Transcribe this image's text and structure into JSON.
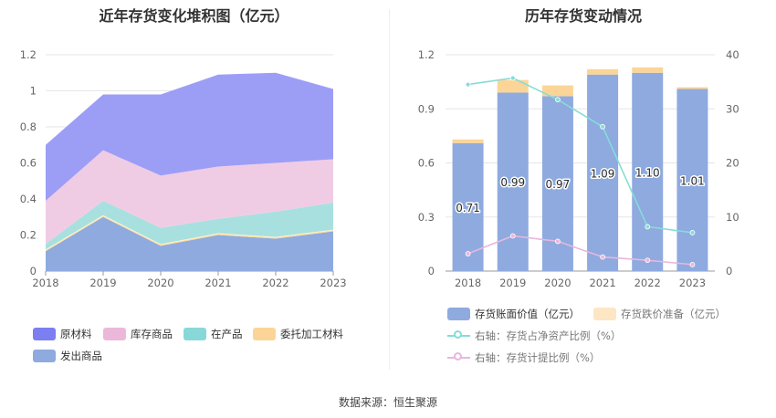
{
  "source_label": "数据来源：恒生聚源",
  "chart_data": [
    {
      "type": "area",
      "stacked": true,
      "title": "近年存货变化堆积图（亿元）",
      "x": [
        "2018",
        "2019",
        "2020",
        "2021",
        "2022",
        "2023"
      ],
      "ylim": [
        0,
        1.2
      ],
      "yticks": [
        "0",
        "0.2",
        "0.4",
        "0.6",
        "0.8",
        "1",
        "1.2"
      ],
      "grid": true,
      "legend_position": "bottom",
      "series": [
        {
          "name": "发出商品",
          "color": "#8eaadf",
          "values": [
            0.11,
            0.3,
            0.14,
            0.2,
            0.18,
            0.22
          ]
        },
        {
          "name": "委托加工材料",
          "color": "#fdd99a",
          "values": [
            0.01,
            0.01,
            0.01,
            0.01,
            0.01,
            0.01
          ]
        },
        {
          "name": "在产品",
          "color": "#a8e0e0",
          "values": [
            0.03,
            0.08,
            0.09,
            0.08,
            0.14,
            0.15
          ]
        },
        {
          "name": "库存商品",
          "color": "#f0cce4",
          "values": [
            0.24,
            0.28,
            0.29,
            0.29,
            0.27,
            0.24
          ]
        },
        {
          "name": "原材料",
          "color": "#9c9ef6",
          "values": [
            0.31,
            0.31,
            0.45,
            0.51,
            0.5,
            0.39
          ]
        }
      ],
      "legend_order": [
        "原材料",
        "库存商品",
        "在产品",
        "委托加工材料",
        "发出商品"
      ],
      "legend_colors": [
        "#7b7ff0",
        "#ecb8da",
        "#88d8d8",
        "#fbd597",
        "#8eaadf"
      ]
    },
    {
      "type": "bar",
      "title": "历年存货变动情况",
      "categories": [
        "2018",
        "2019",
        "2020",
        "2021",
        "2022",
        "2023"
      ],
      "ylim": [
        0,
        1.2
      ],
      "yticks": [
        "0",
        "0.3",
        "0.6",
        "0.9",
        "1.2"
      ],
      "y2lim": [
        0,
        40
      ],
      "y2ticks": [
        "0",
        "10",
        "20",
        "30",
        "40"
      ],
      "grid": true,
      "legend_position": "bottom",
      "series": [
        {
          "name": "存货账面价值（亿元）",
          "type": "bar",
          "stack": "inv",
          "color": "#8eaadf",
          "values": [
            0.71,
            0.99,
            0.97,
            1.09,
            1.1,
            1.01
          ],
          "labels": [
            "0.71",
            "0.99",
            "0.97",
            "1.09",
            "1.10",
            "1.01"
          ]
        },
        {
          "name": "存货跌价准备（亿元）",
          "type": "bar",
          "stack": "inv",
          "color": "#fbd597",
          "legend_color": "#fde6c3",
          "values": [
            0.02,
            0.07,
            0.06,
            0.03,
            0.03,
            0.01
          ]
        },
        {
          "name": "右轴：存货占净资产比例（%）",
          "type": "line",
          "axis": "right",
          "color": "#87dcd8",
          "values": [
            34.5,
            35.7,
            31.7,
            26.7,
            8.2,
            7.1
          ]
        },
        {
          "name": "右轴：存货计提比例（%）",
          "type": "line",
          "axis": "right",
          "color": "#eab6dc",
          "values": [
            3.2,
            6.5,
            5.5,
            2.6,
            2.0,
            1.2
          ]
        }
      ]
    }
  ]
}
